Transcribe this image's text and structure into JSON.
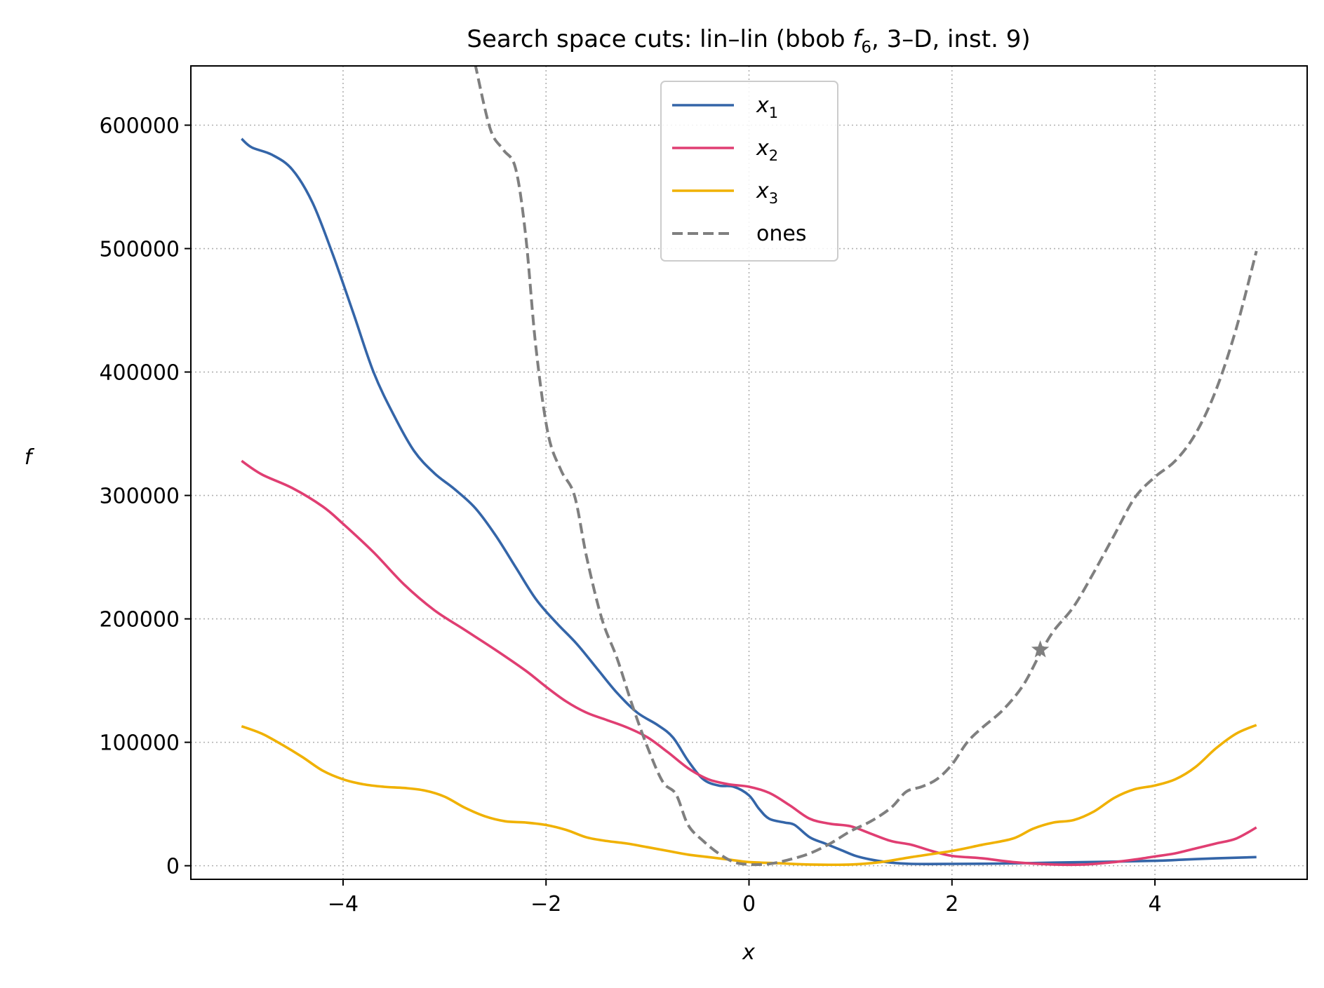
{
  "chart_data": {
    "type": "line",
    "title": "Search space cuts: lin–lin (bbob f6, 3–D, inst. 9)",
    "title_parts": {
      "prefix": "Search space cuts: lin–lin (bbob ",
      "func_symbol": "f",
      "func_subscript": "6",
      "suffix": ", 3–D, inst. 9)"
    },
    "xlabel": "x",
    "ylabel": "f",
    "xlim": [
      -5.5,
      5.5
    ],
    "ylim": [
      -11000,
      648000
    ],
    "x_ticks": [
      -4,
      -2,
      0,
      2,
      4
    ],
    "x_tick_labels": [
      "−4",
      "−2",
      "0",
      "2",
      "4"
    ],
    "y_ticks": [
      0,
      100000,
      200000,
      300000,
      400000,
      500000,
      600000
    ],
    "y_tick_labels": [
      "0",
      "100000",
      "200000",
      "300000",
      "400000",
      "500000",
      "600000"
    ],
    "grid": true,
    "legend_position": "upper-center",
    "series": [
      {
        "name": "x1",
        "legend_symbol": "x",
        "legend_subscript": "1",
        "color": "#3465a8",
        "style": "solid",
        "points": [
          [
            -5,
            589000
          ],
          [
            -4.9,
            582000
          ],
          [
            -4.7,
            576000
          ],
          [
            -4.5,
            564000
          ],
          [
            -4.3,
            537000
          ],
          [
            -4.1,
            495000
          ],
          [
            -3.9,
            448000
          ],
          [
            -3.7,
            400000
          ],
          [
            -3.5,
            365000
          ],
          [
            -3.3,
            336000
          ],
          [
            -3.1,
            318000
          ],
          [
            -2.9,
            305000
          ],
          [
            -2.7,
            290000
          ],
          [
            -2.5,
            268000
          ],
          [
            -2.3,
            242000
          ],
          [
            -2.1,
            216000
          ],
          [
            -1.9,
            197000
          ],
          [
            -1.7,
            180000
          ],
          [
            -1.5,
            160000
          ],
          [
            -1.3,
            140000
          ],
          [
            -1.1,
            124000
          ],
          [
            -0.9,
            114000
          ],
          [
            -0.75,
            104000
          ],
          [
            -0.6,
            85000
          ],
          [
            -0.45,
            70000
          ],
          [
            -0.3,
            65000
          ],
          [
            -0.15,
            64000
          ],
          [
            0,
            57000
          ],
          [
            0.1,
            46000
          ],
          [
            0.2,
            38000
          ],
          [
            0.35,
            35000
          ],
          [
            0.45,
            33000
          ],
          [
            0.6,
            23000
          ],
          [
            0.75,
            18000
          ],
          [
            0.9,
            13000
          ],
          [
            1.05,
            8000
          ],
          [
            1.2,
            5000
          ],
          [
            1.4,
            2500
          ],
          [
            1.6,
            1500
          ],
          [
            2,
            1500
          ],
          [
            2.5,
            1800
          ],
          [
            3,
            2500
          ],
          [
            3.5,
            3200
          ],
          [
            4,
            4000
          ],
          [
            4.3,
            5000
          ],
          [
            4.6,
            6000
          ],
          [
            5,
            7000
          ]
        ]
      },
      {
        "name": "x2",
        "legend_symbol": "x",
        "legend_subscript": "2",
        "color": "#e03e72",
        "style": "solid",
        "points": [
          [
            -5,
            328000
          ],
          [
            -4.8,
            317000
          ],
          [
            -4.5,
            306000
          ],
          [
            -4.2,
            291000
          ],
          [
            -4,
            277000
          ],
          [
            -3.7,
            254000
          ],
          [
            -3.4,
            228000
          ],
          [
            -3.1,
            207000
          ],
          [
            -2.8,
            191000
          ],
          [
            -2.5,
            175000
          ],
          [
            -2.2,
            158000
          ],
          [
            -2,
            145000
          ],
          [
            -1.8,
            133000
          ],
          [
            -1.6,
            124000
          ],
          [
            -1.4,
            118000
          ],
          [
            -1.2,
            112000
          ],
          [
            -1,
            104000
          ],
          [
            -0.8,
            92000
          ],
          [
            -0.6,
            79000
          ],
          [
            -0.4,
            70000
          ],
          [
            -0.2,
            66000
          ],
          [
            0,
            64000
          ],
          [
            0.2,
            59000
          ],
          [
            0.4,
            49000
          ],
          [
            0.6,
            38000
          ],
          [
            0.8,
            34000
          ],
          [
            1,
            32000
          ],
          [
            1.2,
            26000
          ],
          [
            1.4,
            20000
          ],
          [
            1.6,
            17000
          ],
          [
            1.8,
            12000
          ],
          [
            2,
            8000
          ],
          [
            2.3,
            6000
          ],
          [
            2.6,
            3000
          ],
          [
            3,
            1000
          ],
          [
            3.3,
            1000
          ],
          [
            3.6,
            3000
          ],
          [
            3.8,
            5000
          ],
          [
            4,
            7500
          ],
          [
            4.2,
            10000
          ],
          [
            4.4,
            14000
          ],
          [
            4.6,
            18000
          ],
          [
            4.8,
            22000
          ],
          [
            5,
            31000
          ]
        ]
      },
      {
        "name": "x3",
        "legend_symbol": "x",
        "legend_subscript": "3",
        "color": "#f0b100",
        "style": "solid",
        "points": [
          [
            -5,
            113000
          ],
          [
            -4.8,
            107000
          ],
          [
            -4.6,
            98000
          ],
          [
            -4.4,
            88000
          ],
          [
            -4.2,
            77000
          ],
          [
            -4,
            70000
          ],
          [
            -3.8,
            66000
          ],
          [
            -3.6,
            64000
          ],
          [
            -3.4,
            63000
          ],
          [
            -3.2,
            61000
          ],
          [
            -3,
            56000
          ],
          [
            -2.8,
            47000
          ],
          [
            -2.6,
            40000
          ],
          [
            -2.4,
            36000
          ],
          [
            -2.2,
            35000
          ],
          [
            -2,
            33000
          ],
          [
            -1.8,
            29000
          ],
          [
            -1.6,
            23000
          ],
          [
            -1.4,
            20000
          ],
          [
            -1.2,
            18000
          ],
          [
            -1,
            15000
          ],
          [
            -0.8,
            12000
          ],
          [
            -0.6,
            9000
          ],
          [
            -0.4,
            7000
          ],
          [
            -0.2,
            5000
          ],
          [
            0,
            3000
          ],
          [
            0.3,
            2000
          ],
          [
            0.6,
            1000
          ],
          [
            1,
            1000
          ],
          [
            1.3,
            3000
          ],
          [
            1.6,
            7000
          ],
          [
            2,
            12000
          ],
          [
            2.3,
            17000
          ],
          [
            2.6,
            22000
          ],
          [
            2.8,
            30000
          ],
          [
            3,
            35000
          ],
          [
            3.2,
            37000
          ],
          [
            3.4,
            44000
          ],
          [
            3.6,
            55000
          ],
          [
            3.8,
            62000
          ],
          [
            4,
            65000
          ],
          [
            4.2,
            70000
          ],
          [
            4.4,
            80000
          ],
          [
            4.6,
            95000
          ],
          [
            4.8,
            107000
          ],
          [
            5,
            114000
          ]
        ]
      },
      {
        "name": "ones",
        "legend_label": "ones",
        "color": "#7f7f7f",
        "style": "dashed",
        "points": [
          [
            -2.7,
            650000
          ],
          [
            -2.55,
            597000
          ],
          [
            -2.42,
            580000
          ],
          [
            -2.3,
            565000
          ],
          [
            -2.2,
            510000
          ],
          [
            -2.1,
            420000
          ],
          [
            -1.98,
            350000
          ],
          [
            -1.85,
            320000
          ],
          [
            -1.72,
            300000
          ],
          [
            -1.6,
            250000
          ],
          [
            -1.45,
            200000
          ],
          [
            -1.3,
            168000
          ],
          [
            -1.15,
            130000
          ],
          [
            -1,
            96000
          ],
          [
            -0.85,
            68000
          ],
          [
            -0.72,
            58000
          ],
          [
            -0.6,
            33000
          ],
          [
            -0.45,
            20000
          ],
          [
            -0.3,
            10000
          ],
          [
            -0.15,
            3000
          ],
          [
            0,
            1000
          ],
          [
            0.2,
            1500
          ],
          [
            0.4,
            5000
          ],
          [
            0.6,
            10000
          ],
          [
            0.8,
            18000
          ],
          [
            1,
            28000
          ],
          [
            1.2,
            36000
          ],
          [
            1.4,
            47000
          ],
          [
            1.55,
            60000
          ],
          [
            1.7,
            64000
          ],
          [
            1.85,
            70000
          ],
          [
            2,
            82000
          ],
          [
            2.15,
            100000
          ],
          [
            2.3,
            112000
          ],
          [
            2.5,
            126000
          ],
          [
            2.7,
            146000
          ],
          [
            2.87,
            172000
          ],
          [
            3,
            190000
          ],
          [
            3.2,
            210000
          ],
          [
            3.4,
            238000
          ],
          [
            3.6,
            268000
          ],
          [
            3.8,
            298000
          ],
          [
            4,
            315000
          ],
          [
            4.2,
            328000
          ],
          [
            4.4,
            350000
          ],
          [
            4.6,
            385000
          ],
          [
            4.8,
            435000
          ],
          [
            5,
            498000
          ]
        ]
      }
    ],
    "marker": {
      "symbol": "star",
      "x": 2.87,
      "y": 175000,
      "color": "#7f7f7f"
    }
  }
}
